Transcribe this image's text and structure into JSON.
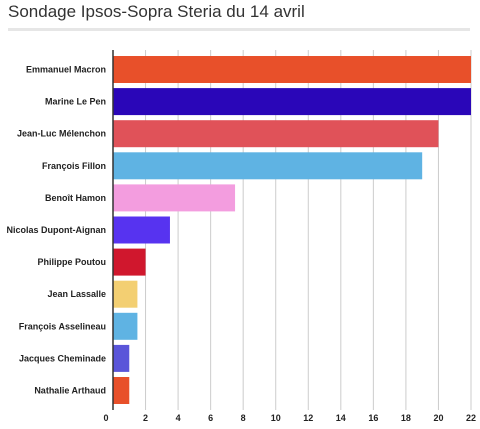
{
  "chart_data": {
    "type": "bar",
    "orientation": "horizontal",
    "title": "Sondage Ipsos-Sopra Steria du 14 avril",
    "xlabel": "",
    "ylabel": "",
    "xlim": [
      0,
      22
    ],
    "x_ticks": [
      0,
      2,
      4,
      6,
      8,
      10,
      12,
      14,
      16,
      18,
      20,
      22
    ],
    "grid": true,
    "legend": "none",
    "categories": [
      "Emmanuel Macron",
      "Marine Le Pen",
      "Jean-Luc Mélenchon",
      "François Fillon",
      "Benoît Hamon",
      "Nicolas Dupont-Aignan",
      "Philippe Poutou",
      "Jean Lassalle",
      "François Asselineau",
      "Jacques Cheminade",
      "Nathalie Arthaud"
    ],
    "values": [
      22,
      22,
      20,
      19,
      7.5,
      3.5,
      2,
      1.5,
      1.5,
      1,
      1
    ],
    "colors": [
      "#e8502a",
      "#2a06b8",
      "#e05259",
      "#5fb3e3",
      "#f39ddf",
      "#5733f0",
      "#d0172d",
      "#f3cf72",
      "#5fb3e3",
      "#5a55d9",
      "#e8502a"
    ]
  }
}
